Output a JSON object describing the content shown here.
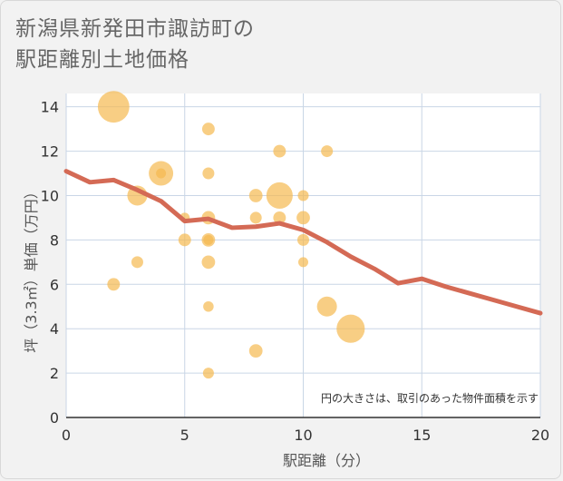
{
  "title_line1": "新潟県新発田市諏訪町の",
  "title_line2": "駅距離別土地価格",
  "chart_data": {
    "type": "scatter",
    "title": "新潟県新発田市諏訪町の駅距離別土地価格",
    "xlabel": "駅距離（分）",
    "ylabel": "坪（3.3㎡）単価（万円）",
    "xlim": [
      0,
      20
    ],
    "ylim": [
      0,
      14.6
    ],
    "x_ticks": [
      0,
      5,
      10,
      15,
      20
    ],
    "y_ticks": [
      0,
      2,
      4,
      6,
      8,
      10,
      12,
      14
    ],
    "grid": true,
    "note": "円の大きさは、取引のあった物件面積を示す",
    "bubble_color": "#f5b950",
    "line_color": "#d46a55",
    "points": [
      {
        "x": 2,
        "y": 14,
        "size": 10
      },
      {
        "x": 2,
        "y": 6,
        "size": 1.6
      },
      {
        "x": 3,
        "y": 10,
        "size": 4
      },
      {
        "x": 3,
        "y": 7,
        "size": 1.4
      },
      {
        "x": 4,
        "y": 11,
        "size": 6
      },
      {
        "x": 4,
        "y": 11,
        "size": 1
      },
      {
        "x": 5,
        "y": 9,
        "size": 1
      },
      {
        "x": 5,
        "y": 8,
        "size": 1.6
      },
      {
        "x": 6,
        "y": 13,
        "size": 1.6
      },
      {
        "x": 6,
        "y": 11,
        "size": 1.4
      },
      {
        "x": 6,
        "y": 9,
        "size": 1.8
      },
      {
        "x": 6,
        "y": 8,
        "size": 1.8
      },
      {
        "x": 6,
        "y": 8,
        "size": 1
      },
      {
        "x": 6,
        "y": 7,
        "size": 1.8
      },
      {
        "x": 6,
        "y": 5,
        "size": 1.1
      },
      {
        "x": 6,
        "y": 2,
        "size": 1.2
      },
      {
        "x": 8,
        "y": 10,
        "size": 1.8
      },
      {
        "x": 8,
        "y": 9,
        "size": 1.4
      },
      {
        "x": 8,
        "y": 3,
        "size": 1.8
      },
      {
        "x": 9,
        "y": 12,
        "size": 1.6
      },
      {
        "x": 9,
        "y": 10,
        "size": 7
      },
      {
        "x": 9,
        "y": 9,
        "size": 1.6
      },
      {
        "x": 10,
        "y": 10,
        "size": 1.2
      },
      {
        "x": 10,
        "y": 9,
        "size": 1.8
      },
      {
        "x": 10,
        "y": 8,
        "size": 1.4
      },
      {
        "x": 10,
        "y": 7,
        "size": 1
      },
      {
        "x": 11,
        "y": 12,
        "size": 1.4
      },
      {
        "x": 11,
        "y": 5,
        "size": 4
      },
      {
        "x": 12,
        "y": 4,
        "size": 8
      }
    ],
    "trend_line": {
      "x": [
        0,
        1,
        2,
        3,
        4,
        5,
        6,
        7,
        8,
        9,
        10,
        11,
        12,
        13,
        14,
        15,
        16,
        17,
        18,
        19,
        20
      ],
      "y": [
        11.1,
        10.6,
        10.7,
        10.25,
        9.75,
        8.85,
        8.95,
        8.55,
        8.6,
        8.75,
        8.45,
        7.9,
        7.25,
        6.7,
        6.05,
        6.25,
        5.9,
        5.6,
        5.3,
        5.0,
        4.7
      ]
    }
  }
}
